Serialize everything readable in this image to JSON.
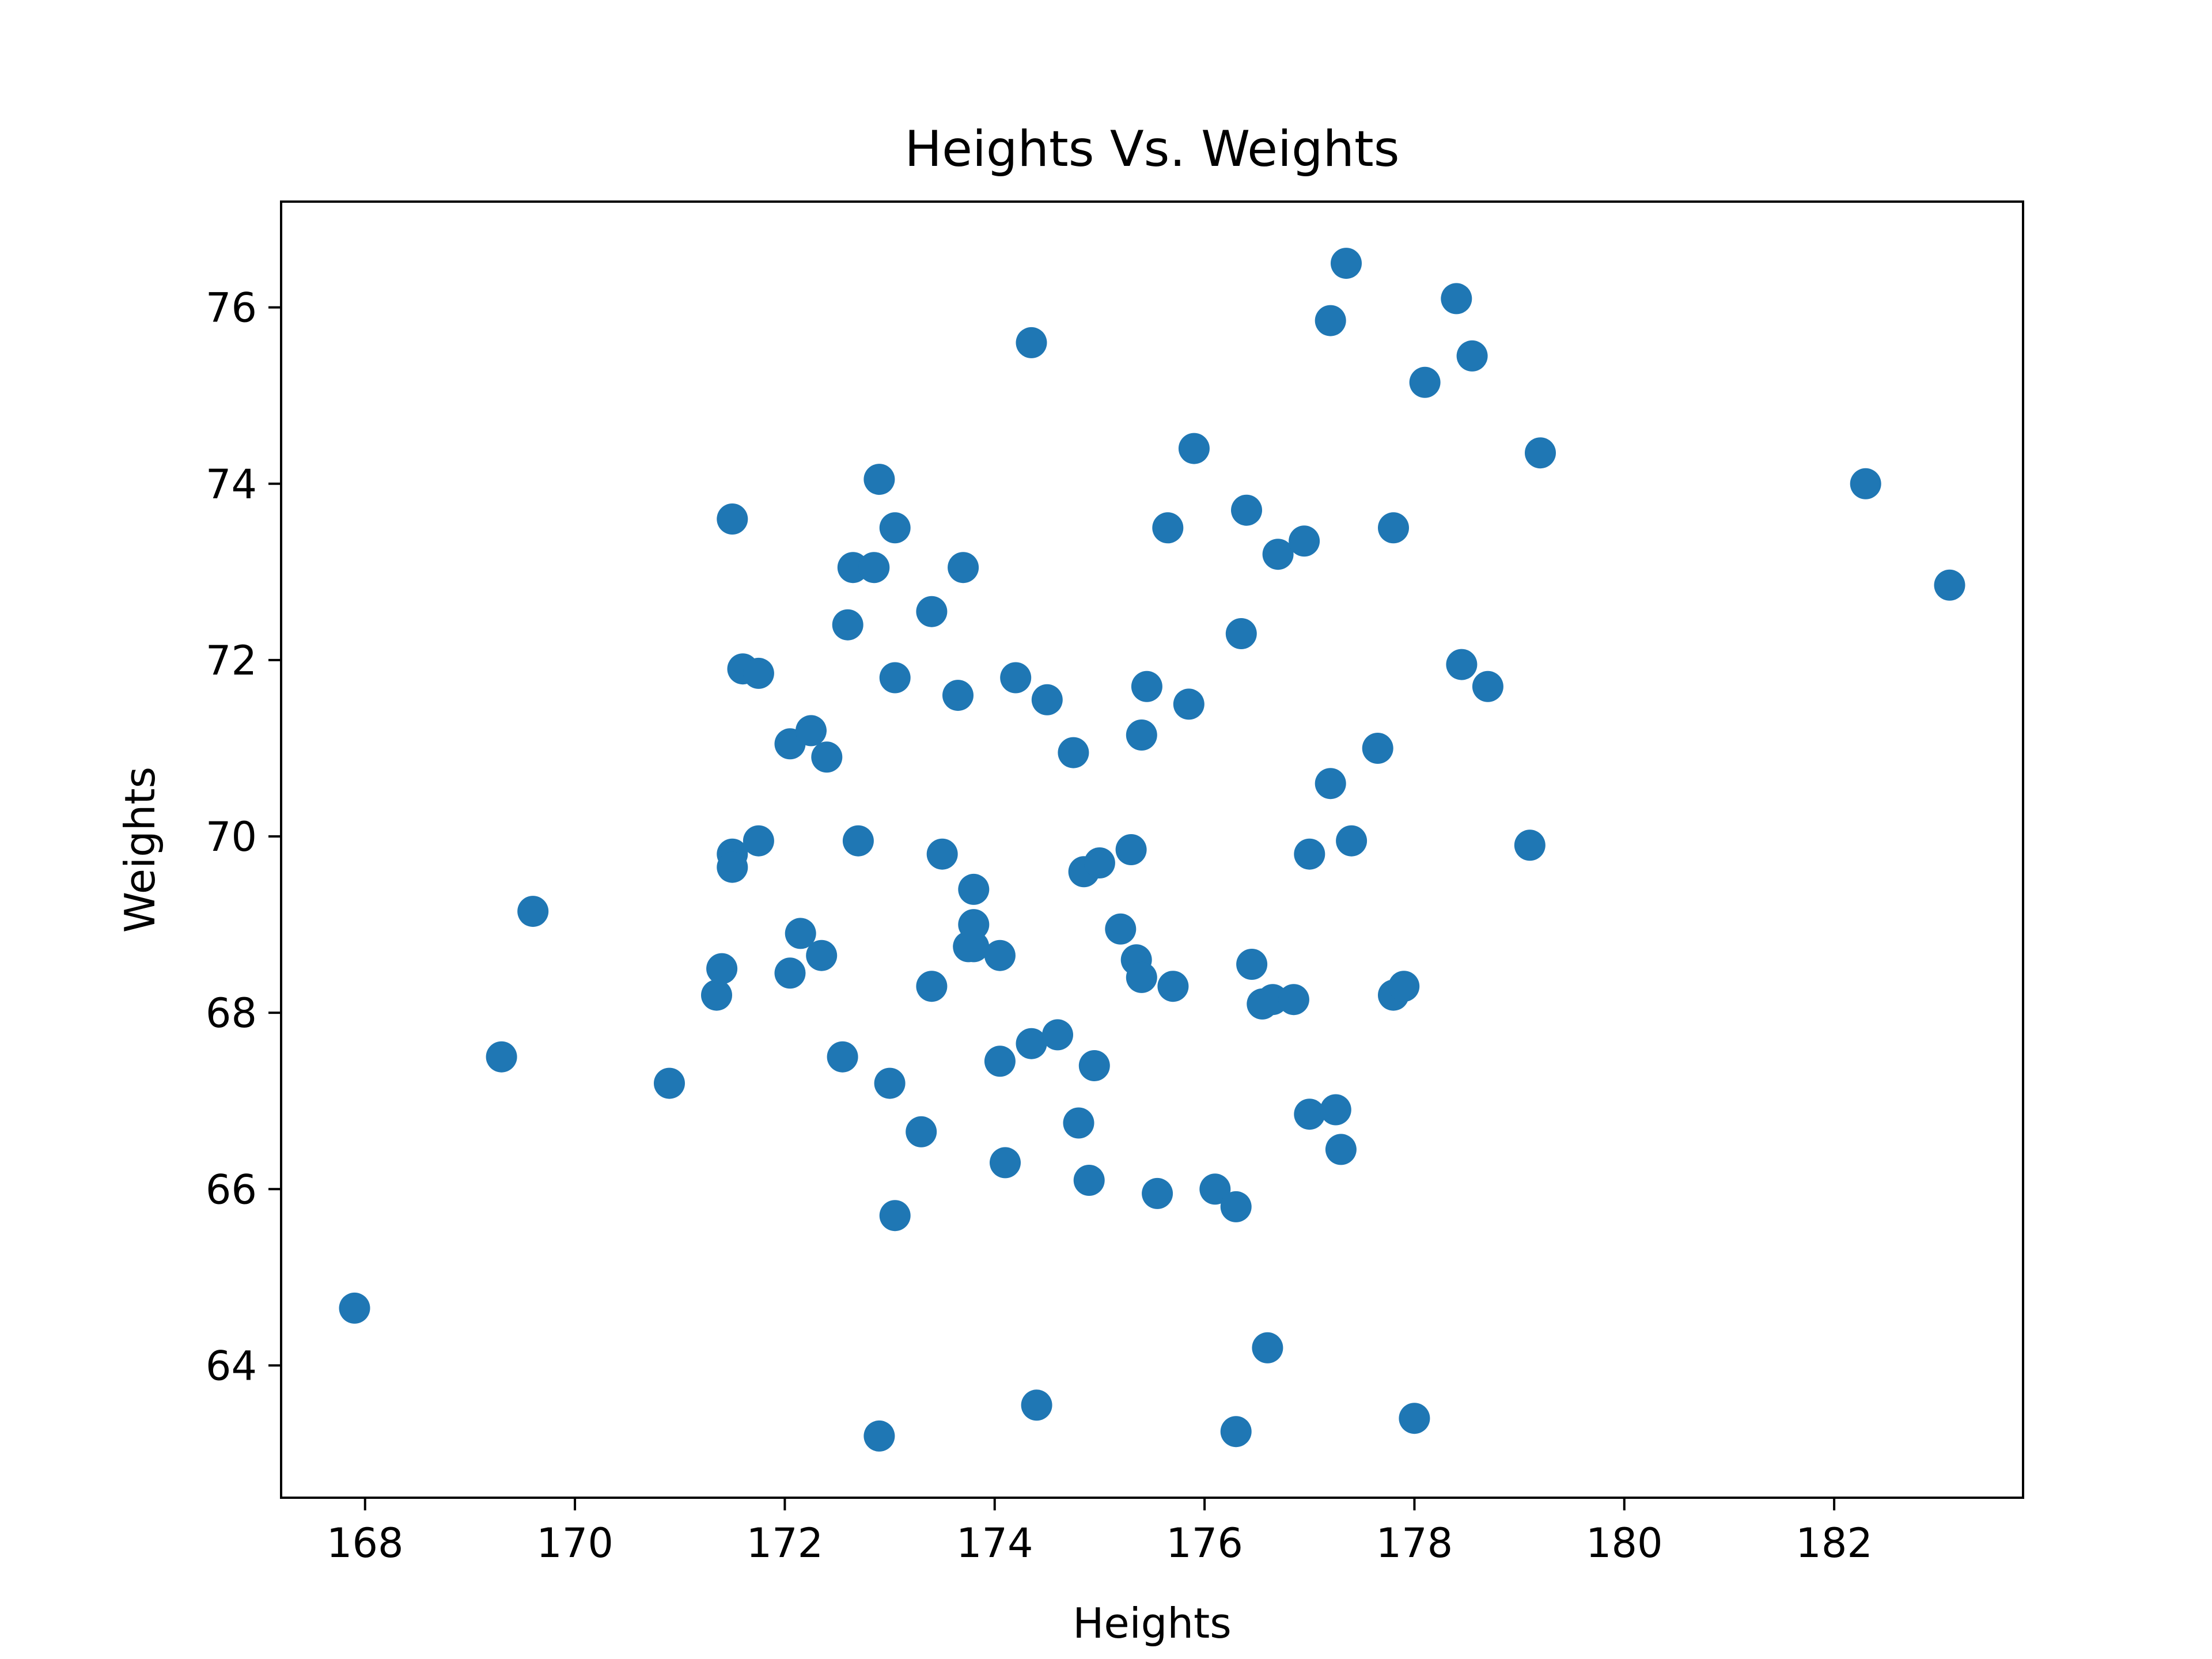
{
  "chart_data": {
    "type": "scatter",
    "title": "Heights Vs. Weights",
    "xlabel": "Heights",
    "ylabel": "Weights",
    "xlim": [
      167.2,
      183.8
    ],
    "ylim": [
      62.5,
      77.2
    ],
    "xticks": [
      168,
      170,
      172,
      174,
      176,
      178,
      180,
      182
    ],
    "yticks": [
      64,
      66,
      68,
      70,
      72,
      74,
      76
    ],
    "grid": false,
    "legend": "none",
    "color": "#1f77b4",
    "series": [
      {
        "points": [
          [
            167.9,
            64.65
          ],
          [
            169.3,
            67.5
          ],
          [
            169.6,
            69.15
          ],
          [
            170.9,
            67.2
          ],
          [
            171.35,
            68.2
          ],
          [
            171.4,
            68.5
          ],
          [
            171.5,
            69.8
          ],
          [
            171.5,
            69.65
          ],
          [
            171.5,
            73.6
          ],
          [
            171.6,
            71.9
          ],
          [
            171.75,
            71.85
          ],
          [
            171.75,
            69.95
          ],
          [
            172.05,
            71.05
          ],
          [
            172.05,
            68.45
          ],
          [
            172.15,
            68.9
          ],
          [
            172.25,
            71.2
          ],
          [
            172.35,
            68.65
          ],
          [
            172.4,
            70.9
          ],
          [
            172.55,
            67.5
          ],
          [
            172.6,
            72.4
          ],
          [
            172.65,
            73.05
          ],
          [
            172.7,
            69.95
          ],
          [
            172.85,
            73.05
          ],
          [
            172.9,
            74.05
          ],
          [
            172.9,
            63.2
          ],
          [
            173.0,
            67.2
          ],
          [
            173.05,
            71.8
          ],
          [
            173.05,
            73.5
          ],
          [
            173.05,
            65.7
          ],
          [
            173.3,
            66.65
          ],
          [
            173.4,
            72.55
          ],
          [
            173.4,
            68.3
          ],
          [
            173.5,
            69.8
          ],
          [
            173.65,
            71.6
          ],
          [
            173.7,
            73.05
          ],
          [
            173.75,
            68.75
          ],
          [
            173.8,
            69.4
          ],
          [
            173.8,
            68.75
          ],
          [
            173.8,
            69.0
          ],
          [
            174.05,
            68.65
          ],
          [
            174.05,
            67.45
          ],
          [
            174.1,
            66.3
          ],
          [
            174.2,
            71.8
          ],
          [
            174.35,
            75.6
          ],
          [
            174.35,
            67.65
          ],
          [
            174.4,
            63.55
          ],
          [
            174.5,
            71.55
          ],
          [
            174.6,
            67.75
          ],
          [
            174.75,
            70.95
          ],
          [
            174.8,
            66.75
          ],
          [
            174.85,
            69.6
          ],
          [
            174.9,
            66.1
          ],
          [
            174.95,
            67.4
          ],
          [
            175.0,
            69.7
          ],
          [
            175.2,
            68.95
          ],
          [
            175.3,
            69.85
          ],
          [
            175.35,
            68.6
          ],
          [
            175.4,
            68.4
          ],
          [
            175.4,
            71.15
          ],
          [
            175.45,
            71.7
          ],
          [
            175.55,
            65.95
          ],
          [
            175.65,
            73.5
          ],
          [
            175.7,
            68.3
          ],
          [
            175.85,
            71.5
          ],
          [
            175.9,
            74.4
          ],
          [
            176.1,
            66.0
          ],
          [
            176.3,
            65.8
          ],
          [
            176.3,
            63.25
          ],
          [
            176.35,
            72.3
          ],
          [
            176.4,
            73.7
          ],
          [
            176.45,
            68.55
          ],
          [
            176.55,
            68.1
          ],
          [
            176.6,
            64.2
          ],
          [
            176.65,
            68.15
          ],
          [
            176.7,
            73.2
          ],
          [
            176.85,
            68.15
          ],
          [
            176.95,
            73.35
          ],
          [
            177.0,
            69.8
          ],
          [
            177.0,
            66.85
          ],
          [
            177.2,
            75.85
          ],
          [
            177.2,
            70.6
          ],
          [
            177.25,
            66.9
          ],
          [
            177.3,
            66.45
          ],
          [
            177.35,
            76.5
          ],
          [
            177.4,
            69.95
          ],
          [
            177.65,
            71.0
          ],
          [
            177.8,
            73.5
          ],
          [
            177.8,
            68.2
          ],
          [
            177.9,
            68.3
          ],
          [
            178.0,
            63.4
          ],
          [
            178.1,
            75.15
          ],
          [
            178.4,
            76.1
          ],
          [
            178.45,
            71.95
          ],
          [
            178.55,
            75.45
          ],
          [
            178.7,
            71.7
          ],
          [
            179.1,
            69.9
          ],
          [
            179.2,
            74.35
          ],
          [
            182.3,
            74.0
          ],
          [
            183.1,
            72.85
          ]
        ]
      }
    ]
  }
}
